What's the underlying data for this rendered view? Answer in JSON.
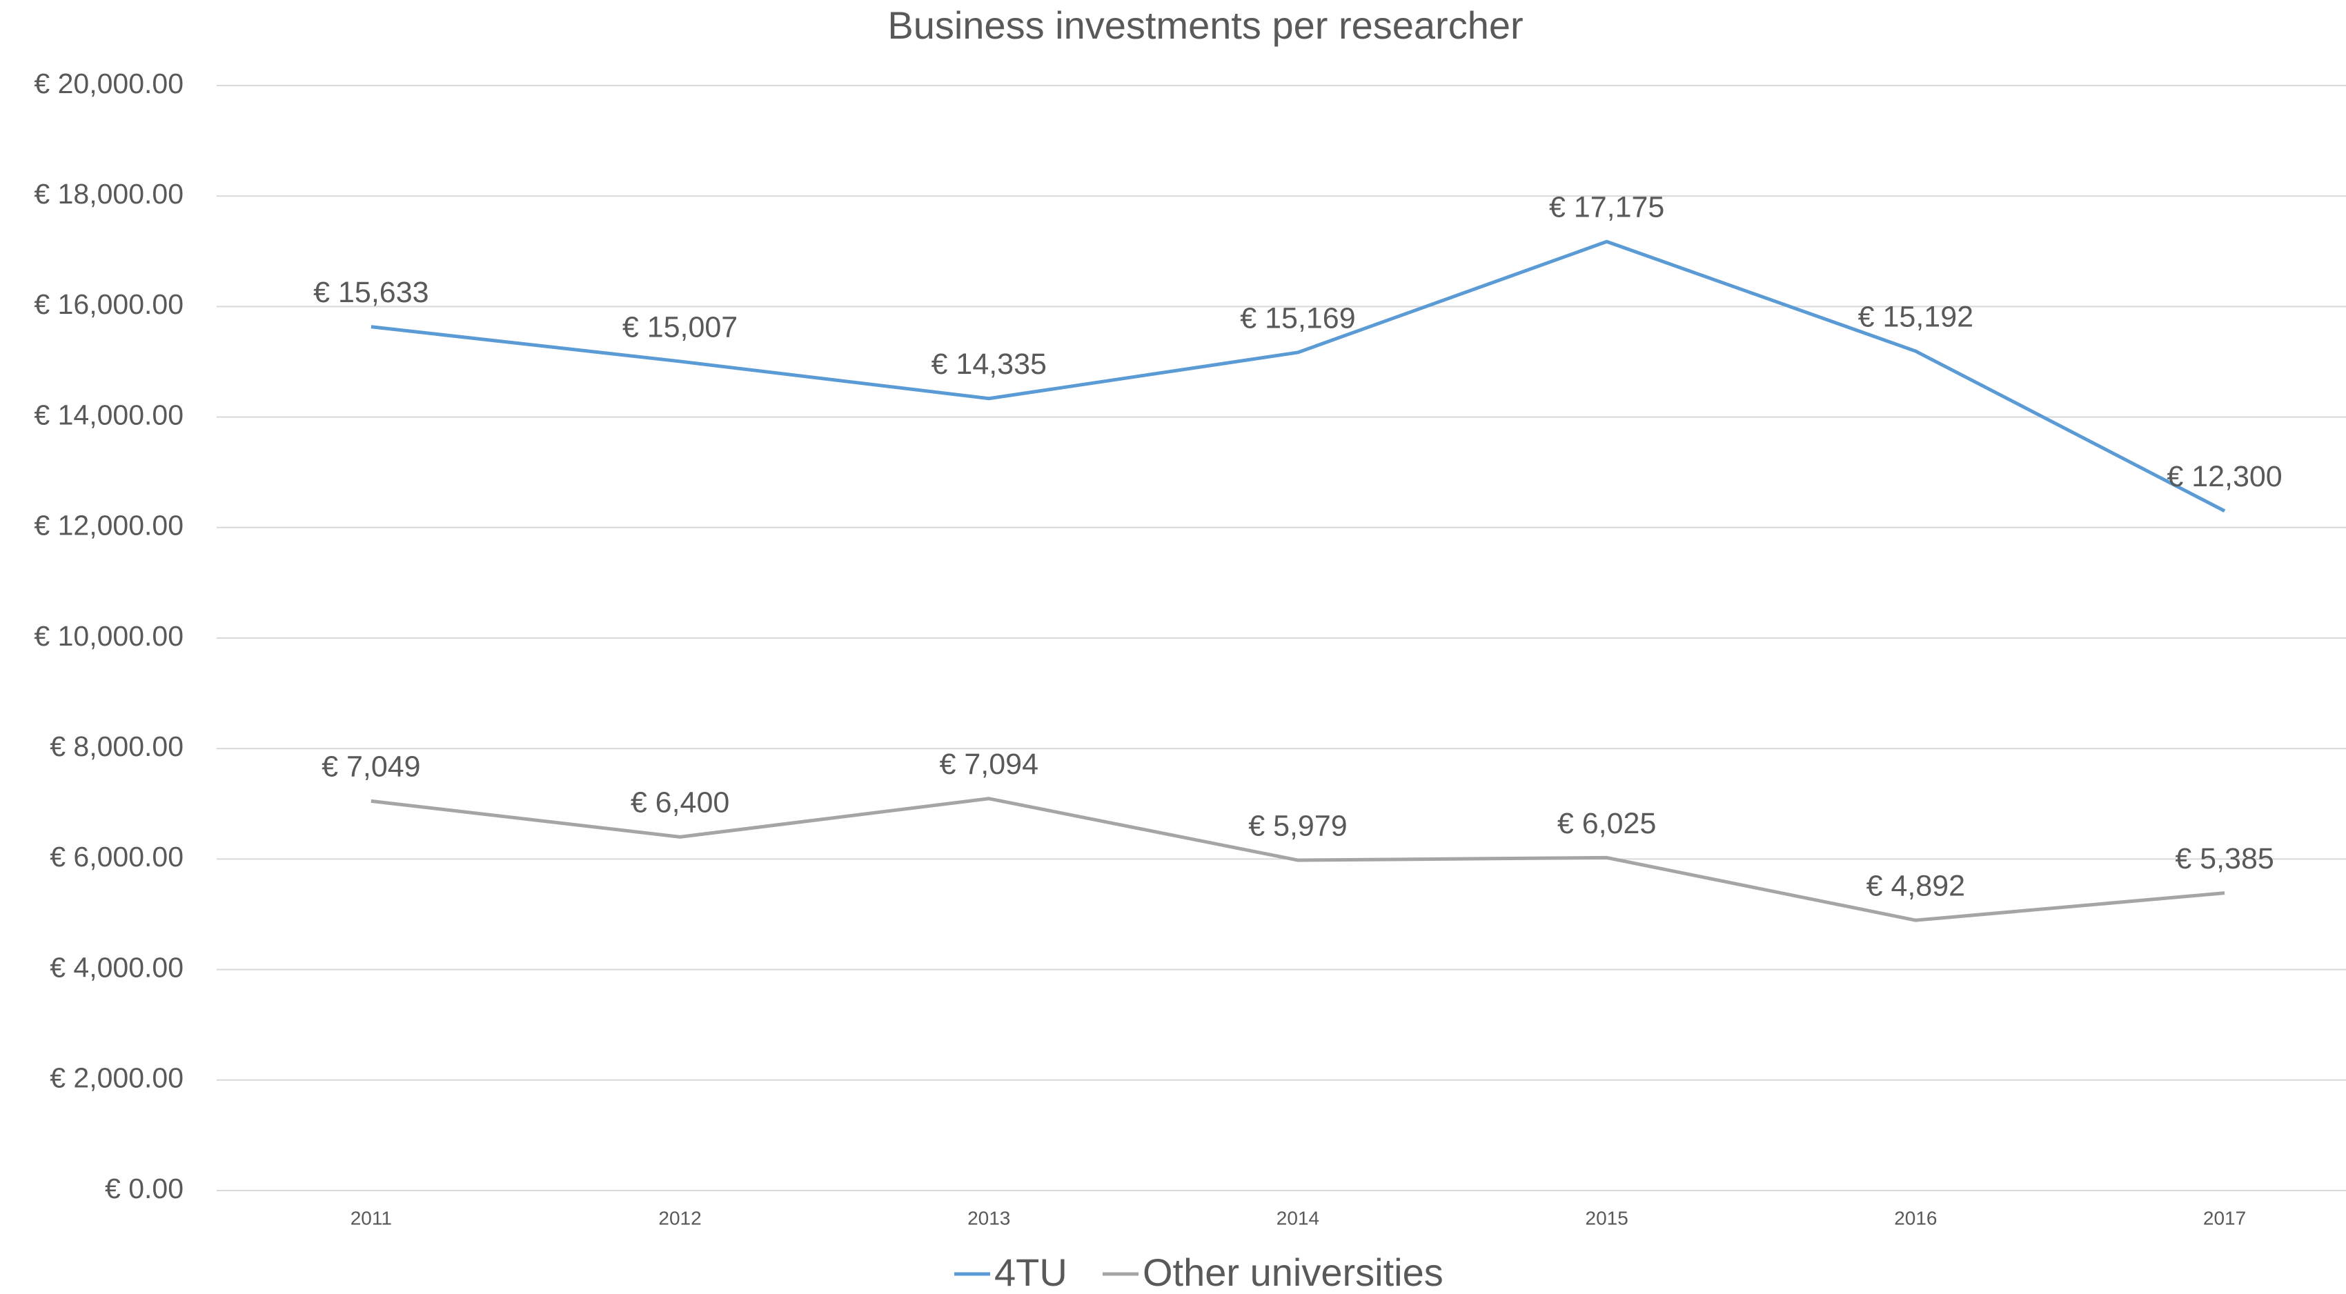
{
  "chart_data": {
    "type": "line",
    "title": "Business investments per researcher",
    "categories": [
      "2011",
      "2012",
      "2013",
      "2014",
      "2015",
      "2016",
      "2017"
    ],
    "series": [
      {
        "name": "4TU",
        "color": "#5b9bd5",
        "values": [
          15633,
          15007,
          14335,
          15169,
          17175,
          15192,
          12300
        ],
        "value_labels": [
          "€ 15,633",
          "€ 15,007",
          "€ 14,335",
          "€ 15,169",
          "€ 17,175",
          "€ 15,192",
          "€ 12,300"
        ]
      },
      {
        "name": "Other universities",
        "color": "#a5a5a5",
        "values": [
          7049,
          6400,
          7094,
          5979,
          6025,
          4892,
          5385
        ],
        "value_labels": [
          "€ 7,049",
          "€ 6,400",
          "€ 7,094",
          "€ 5,979",
          "€ 6,025",
          "€ 4,892",
          "€ 5,385"
        ]
      }
    ],
    "ylim": [
      0,
      20000
    ],
    "yticks": [
      {
        "value": 0,
        "label": "€ 0.00"
      },
      {
        "value": 2000,
        "label": "€ 2,000.00"
      },
      {
        "value": 4000,
        "label": "€ 4,000.00"
      },
      {
        "value": 6000,
        "label": "€ 6,000.00"
      },
      {
        "value": 8000,
        "label": "€ 8,000.00"
      },
      {
        "value": 10000,
        "label": "€ 10,000.00"
      },
      {
        "value": 12000,
        "label": "€ 12,000.00"
      },
      {
        "value": 14000,
        "label": "€ 14,000.00"
      },
      {
        "value": 16000,
        "label": "€ 16,000.00"
      },
      {
        "value": 18000,
        "label": "€ 18,000.00"
      },
      {
        "value": 20000,
        "label": "€ 20,000.00"
      }
    ],
    "grid": true,
    "legend": "bottom"
  }
}
